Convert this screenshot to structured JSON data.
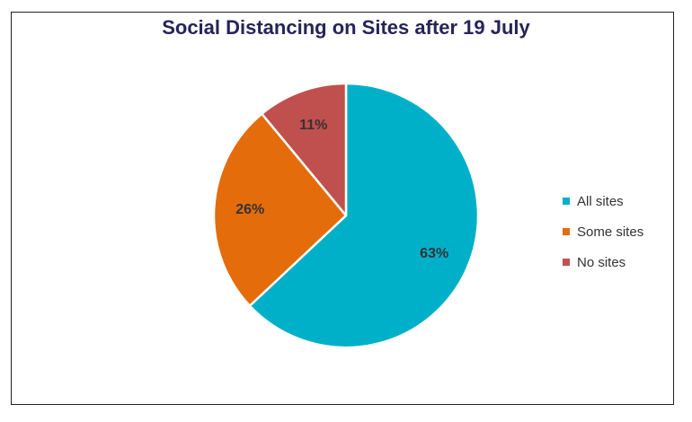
{
  "chart_data": {
    "type": "pie",
    "title": "Social Distancing on Sites after 19 July",
    "categories": [
      "All sites",
      "Some sites",
      "No sites"
    ],
    "values": [
      63,
      26,
      11
    ],
    "labels": [
      "63%",
      "26%",
      "11%"
    ],
    "colors": [
      "#00B0C8",
      "#E46C0A",
      "#C0504D"
    ],
    "start_angle": "12 o'clock",
    "direction": "clockwise",
    "legend_position": "right"
  }
}
